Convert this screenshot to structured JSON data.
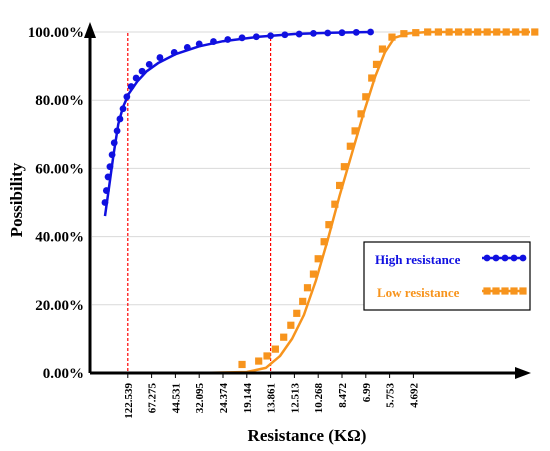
{
  "chart_data": {
    "type": "line",
    "xlabel": "Resistance (KΩ)",
    "ylabel": "Possibility",
    "ylim": [
      0,
      100
    ],
    "y_ticks": [
      "0.00%",
      "20.00%",
      "40.00%",
      "60.00%",
      "80.00%",
      "100.00%"
    ],
    "x_ticks": [
      "122.539",
      "67.275",
      "44.531",
      "32.095",
      "24.374",
      "19.144",
      "13.861",
      "12.513",
      "10.268",
      "8.472",
      "6.99",
      "5.753",
      "4.692"
    ],
    "x_axis_reversed": true,
    "grid": "horizontal",
    "legend_position": "right",
    "reference_lines": [
      {
        "x": "122.539",
        "color": "#ff0000",
        "style": "dashed"
      },
      {
        "x": "13.861",
        "color": "#ff0000",
        "style": "dashed"
      }
    ],
    "series": [
      {
        "name": "High resistance",
        "color": "#1010e0",
        "marker": "circle",
        "points": [
          [
            0.04,
            50
          ],
          [
            0.1,
            53.5
          ],
          [
            0.17,
            57.5
          ],
          [
            0.25,
            60.5
          ],
          [
            0.34,
            64
          ],
          [
            0.43,
            67.5
          ],
          [
            0.55,
            71
          ],
          [
            0.67,
            74.5
          ],
          [
            0.8,
            77.5
          ],
          [
            0.96,
            81
          ],
          [
            1.14,
            84
          ],
          [
            1.35,
            86.5
          ],
          [
            1.6,
            88.5
          ],
          [
            1.9,
            90.5
          ],
          [
            2.35,
            92.5
          ],
          [
            2.95,
            94
          ],
          [
            3.5,
            95.5
          ],
          [
            4.0,
            96.5
          ],
          [
            4.6,
            97.2
          ],
          [
            5.2,
            97.8
          ],
          [
            5.8,
            98.3
          ],
          [
            6.4,
            98.6
          ],
          [
            7.0,
            98.9
          ],
          [
            7.6,
            99.2
          ],
          [
            8.2,
            99.4
          ],
          [
            8.8,
            99.6
          ],
          [
            9.4,
            99.7
          ],
          [
            10.0,
            99.8
          ],
          [
            10.6,
            99.9
          ],
          [
            11.2,
            100
          ]
        ],
        "fit": [
          [
            0.04,
            46
          ],
          [
            0.2,
            54
          ],
          [
            0.4,
            64
          ],
          [
            0.6,
            73
          ],
          [
            0.8,
            78
          ],
          [
            1.05,
            82
          ],
          [
            1.4,
            85.5
          ],
          [
            1.8,
            88.5
          ],
          [
            2.3,
            91
          ],
          [
            3.0,
            93.5
          ],
          [
            4.0,
            95.8
          ],
          [
            5.0,
            97.3
          ],
          [
            6.5,
            98.6
          ],
          [
            8.0,
            99.4
          ],
          [
            9.5,
            99.8
          ],
          [
            11.2,
            100
          ]
        ]
      },
      {
        "name": "Low resistance",
        "color": "#f7941d",
        "marker": "square",
        "points": [
          [
            5.8,
            2.5
          ],
          [
            6.5,
            3.5
          ],
          [
            6.85,
            5
          ],
          [
            7.2,
            7
          ],
          [
            7.55,
            10.5
          ],
          [
            7.85,
            14
          ],
          [
            8.1,
            17.5
          ],
          [
            8.35,
            21
          ],
          [
            8.55,
            25
          ],
          [
            8.8,
            29
          ],
          [
            9.0,
            33.5
          ],
          [
            9.25,
            38.5
          ],
          [
            9.45,
            43.5
          ],
          [
            9.7,
            49.5
          ],
          [
            9.9,
            55
          ],
          [
            10.1,
            60.5
          ],
          [
            10.35,
            66.5
          ],
          [
            10.55,
            71
          ],
          [
            10.8,
            76
          ],
          [
            11.0,
            81
          ],
          [
            11.25,
            86.5
          ],
          [
            11.45,
            90.5
          ],
          [
            11.7,
            95
          ],
          [
            12.1,
            98.5
          ],
          [
            12.6,
            99.5
          ],
          [
            13.1,
            99.8
          ],
          [
            13.6,
            100
          ],
          [
            14.05,
            100
          ],
          [
            14.5,
            100
          ],
          [
            14.9,
            100
          ],
          [
            15.3,
            100
          ],
          [
            15.7,
            100
          ],
          [
            16.1,
            100
          ],
          [
            16.5,
            100
          ],
          [
            16.9,
            100
          ],
          [
            17.3,
            100
          ],
          [
            17.7,
            100
          ],
          [
            18.1,
            100
          ]
        ],
        "fit": [
          [
            0.0,
            0
          ],
          [
            4.0,
            0
          ],
          [
            6.0,
            0.3
          ],
          [
            6.8,
            1.5
          ],
          [
            7.4,
            5
          ],
          [
            7.9,
            10
          ],
          [
            8.4,
            17
          ],
          [
            8.9,
            27
          ],
          [
            9.4,
            39
          ],
          [
            9.9,
            52
          ],
          [
            10.4,
            64
          ],
          [
            10.9,
            76
          ],
          [
            11.4,
            87
          ],
          [
            11.8,
            94
          ],
          [
            12.2,
            98.3
          ],
          [
            12.8,
            99.6
          ],
          [
            13.6,
            100
          ],
          [
            18.2,
            100
          ]
        ]
      }
    ]
  }
}
